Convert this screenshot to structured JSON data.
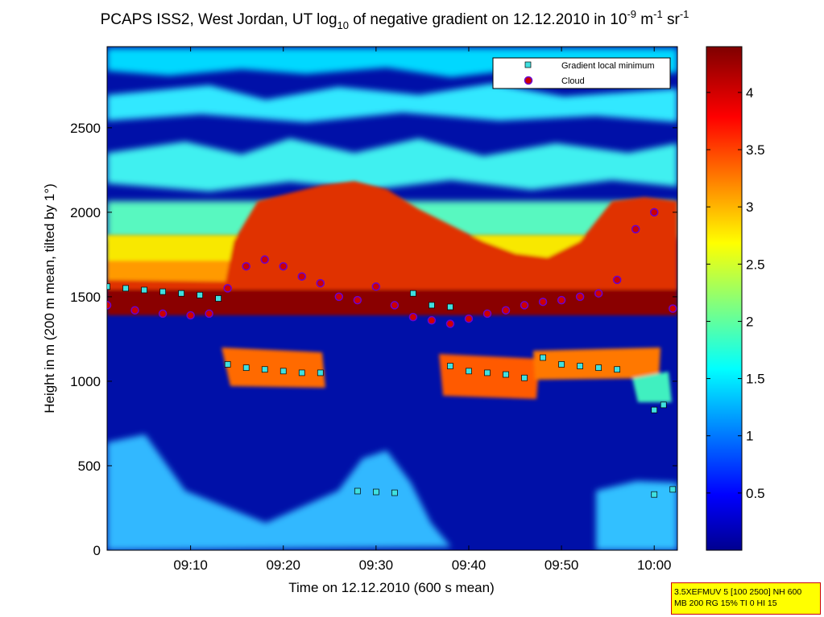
{
  "chart_data": {
    "type": "heatmap",
    "title": {
      "prefix": "PCAPS ISS2, West Jordan, UT log",
      "prefix_sub": "10",
      "middle": " of negative gradient on 12.12.2010 in 10",
      "sup1": "-9",
      "unit1": " m",
      "sup2": "-1",
      "unit2": " sr",
      "sup3": "-1"
    },
    "xlabel": "Time on 12.12.2010 (600 s mean)",
    "ylabel": "Height in m (200 m mean, tilted by 1°)",
    "x_ticks": [
      "09:10",
      "09:20",
      "09:30",
      "09:40",
      "09:50",
      "10:00"
    ],
    "x_tick_minutes": [
      10,
      20,
      30,
      40,
      50,
      60
    ],
    "xlim_minutes": [
      1,
      62.5
    ],
    "y_ticks": [
      0,
      500,
      1000,
      1500,
      2000,
      2500
    ],
    "ylim": [
      0,
      2980
    ],
    "colorbar": {
      "ticks": [
        "0.5",
        "1",
        "1.5",
        "2",
        "2.5",
        "3",
        "3.5",
        "4"
      ],
      "tick_values": [
        0.5,
        1,
        1.5,
        2,
        2.5,
        3,
        3.5,
        4
      ],
      "range": [
        0,
        4.4
      ],
      "colormap": "jet"
    },
    "legend": {
      "position": "top-right",
      "entries": [
        {
          "label": "Gradient local minimum",
          "marker": "square",
          "color": "#40e0e0"
        },
        {
          "label": "Cloud",
          "marker": "circle",
          "color": "#cc0000",
          "edge": "#6a00d0"
        }
      ]
    },
    "series": [
      {
        "name": "Gradient local minimum",
        "points_minutes_height": [
          [
            1,
            1560
          ],
          [
            3,
            1550
          ],
          [
            5,
            1540
          ],
          [
            7,
            1530
          ],
          [
            9,
            1520
          ],
          [
            11,
            1510
          ],
          [
            13,
            1490
          ],
          [
            14,
            1100
          ],
          [
            16,
            1080
          ],
          [
            18,
            1070
          ],
          [
            20,
            1060
          ],
          [
            22,
            1050
          ],
          [
            24,
            1050
          ],
          [
            28,
            350
          ],
          [
            30,
            345
          ],
          [
            32,
            340
          ],
          [
            34,
            1520
          ],
          [
            36,
            1450
          ],
          [
            38,
            1440
          ],
          [
            38,
            1090
          ],
          [
            40,
            1060
          ],
          [
            42,
            1050
          ],
          [
            44,
            1040
          ],
          [
            46,
            1020
          ],
          [
            48,
            1140
          ],
          [
            50,
            1100
          ],
          [
            52,
            1090
          ],
          [
            54,
            1080
          ],
          [
            56,
            1070
          ],
          [
            60,
            830
          ],
          [
            61,
            860
          ],
          [
            60,
            330
          ],
          [
            62,
            360
          ]
        ]
      },
      {
        "name": "Cloud",
        "points_minutes_height": [
          [
            1,
            1450
          ],
          [
            4,
            1420
          ],
          [
            7,
            1400
          ],
          [
            10,
            1390
          ],
          [
            12,
            1400
          ],
          [
            14,
            1550
          ],
          [
            16,
            1680
          ],
          [
            18,
            1720
          ],
          [
            20,
            1680
          ],
          [
            22,
            1620
          ],
          [
            24,
            1580
          ],
          [
            26,
            1500
          ],
          [
            28,
            1480
          ],
          [
            30,
            1560
          ],
          [
            32,
            1450
          ],
          [
            34,
            1380
          ],
          [
            36,
            1360
          ],
          [
            38,
            1340
          ],
          [
            40,
            1370
          ],
          [
            42,
            1400
          ],
          [
            44,
            1420
          ],
          [
            46,
            1450
          ],
          [
            48,
            1470
          ],
          [
            50,
            1480
          ],
          [
            52,
            1500
          ],
          [
            54,
            1520
          ],
          [
            56,
            1600
          ],
          [
            58,
            1900
          ],
          [
            60,
            2000
          ],
          [
            62,
            1430
          ]
        ]
      }
    ]
  },
  "info_box": {
    "line1": "3.5XEFMUV 5 [100 2500] NH 600",
    "line2": "MB 200 RG 15% TI 0 HI 15"
  }
}
